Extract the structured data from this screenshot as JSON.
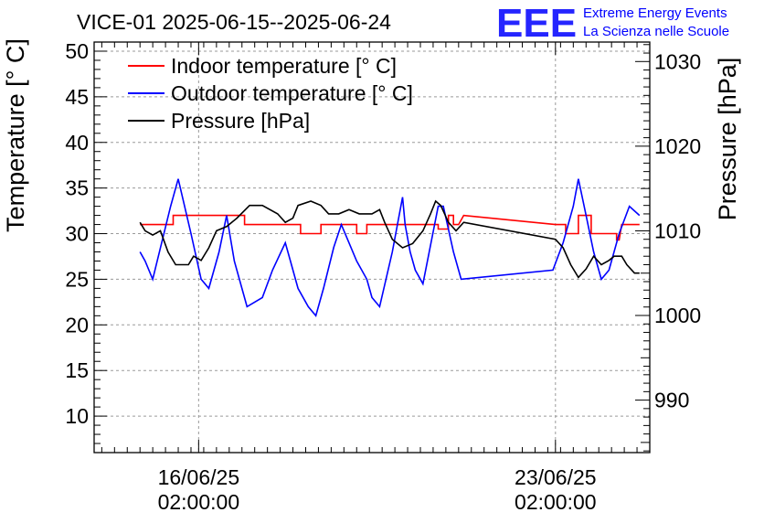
{
  "chart_data": {
    "type": "line",
    "title": "VICE-01 2025-06-15--2025-06-24",
    "ylabel": "Temperature [° C]",
    "y2label": "Pressure [hPa]",
    "ylim": [
      6,
      51
    ],
    "y2lim": [
      983.8,
      1032.3
    ],
    "yticks": [
      10,
      15,
      20,
      25,
      30,
      35,
      40,
      45,
      50
    ],
    "y2ticks": [
      990,
      1000,
      1010,
      1020,
      1030
    ],
    "xlim_days": [
      13.85,
      24.75
    ],
    "xticks": [
      {
        "day": 15.9,
        "line1": "16/06/25",
        "line2": "02:00:00"
      },
      {
        "day": 22.9,
        "line1": "23/06/25",
        "line2": "02:00:00"
      }
    ],
    "grid": true,
    "legend_position": "top-left",
    "series": [
      {
        "name": "Indoor temperature [° C]",
        "axis": "left",
        "color": "#ff0000",
        "points": [
          [
            14.75,
            31
          ],
          [
            15.4,
            31
          ],
          [
            15.4,
            32
          ],
          [
            16.8,
            32
          ],
          [
            16.8,
            31
          ],
          [
            17.9,
            31
          ],
          [
            17.9,
            30
          ],
          [
            18.3,
            30
          ],
          [
            18.3,
            31
          ],
          [
            19.0,
            31
          ],
          [
            19.0,
            30
          ],
          [
            19.2,
            30
          ],
          [
            19.2,
            31
          ],
          [
            20.6,
            31
          ],
          [
            20.6,
            30.5
          ],
          [
            20.8,
            30.5
          ],
          [
            20.8,
            32
          ],
          [
            20.9,
            32
          ],
          [
            20.9,
            31
          ],
          [
            21.0,
            31
          ],
          [
            21.1,
            32
          ],
          [
            22.9,
            31
          ],
          [
            23.1,
            31
          ],
          [
            23.1,
            30
          ],
          [
            23.35,
            30
          ],
          [
            23.35,
            32
          ],
          [
            23.6,
            32
          ],
          [
            23.6,
            30
          ],
          [
            24.1,
            30
          ],
          [
            24.1,
            29.3
          ],
          [
            24.15,
            29.3
          ],
          [
            24.2,
            31
          ],
          [
            24.55,
            31
          ]
        ]
      },
      {
        "name": "Outdoor temperature [° C]",
        "axis": "left",
        "color": "#0000ff",
        "points": [
          [
            14.75,
            28
          ],
          [
            14.85,
            27
          ],
          [
            15.0,
            25
          ],
          [
            15.35,
            33
          ],
          [
            15.5,
            36
          ],
          [
            15.75,
            30
          ],
          [
            15.95,
            25
          ],
          [
            16.1,
            24
          ],
          [
            16.3,
            28
          ],
          [
            16.45,
            32
          ],
          [
            16.6,
            27
          ],
          [
            16.85,
            22
          ],
          [
            17.0,
            22.5
          ],
          [
            17.15,
            23
          ],
          [
            17.35,
            26
          ],
          [
            17.6,
            29
          ],
          [
            17.7,
            27
          ],
          [
            17.85,
            24
          ],
          [
            18.05,
            22
          ],
          [
            18.2,
            21
          ],
          [
            18.35,
            24
          ],
          [
            18.55,
            28.5
          ],
          [
            18.7,
            31
          ],
          [
            19.0,
            27
          ],
          [
            19.2,
            25
          ],
          [
            19.3,
            23
          ],
          [
            19.45,
            22
          ],
          [
            19.7,
            28
          ],
          [
            19.9,
            34
          ],
          [
            19.95,
            31
          ],
          [
            20.05,
            28
          ],
          [
            20.15,
            26
          ],
          [
            20.3,
            24.5
          ],
          [
            20.6,
            33
          ],
          [
            20.7,
            33
          ],
          [
            20.9,
            28
          ],
          [
            21.05,
            25
          ],
          [
            22.85,
            26
          ],
          [
            23.05,
            29
          ],
          [
            23.25,
            33
          ],
          [
            23.35,
            36
          ],
          [
            23.5,
            32
          ],
          [
            23.65,
            28
          ],
          [
            23.8,
            25
          ],
          [
            23.95,
            26
          ],
          [
            24.15,
            30
          ],
          [
            24.35,
            33
          ],
          [
            24.55,
            32
          ]
        ]
      },
      {
        "name": "Pressure [hPa]",
        "axis": "right",
        "color": "#000000",
        "points": [
          [
            14.75,
            1011
          ],
          [
            14.85,
            1010
          ],
          [
            15.0,
            1009.5
          ],
          [
            15.15,
            1010
          ],
          [
            15.3,
            1007.5
          ],
          [
            15.45,
            1006
          ],
          [
            15.7,
            1006
          ],
          [
            15.8,
            1007
          ],
          [
            15.95,
            1006.5
          ],
          [
            16.1,
            1008
          ],
          [
            16.25,
            1010
          ],
          [
            16.45,
            1010.5
          ],
          [
            16.65,
            1011.5
          ],
          [
            16.9,
            1013
          ],
          [
            17.15,
            1013
          ],
          [
            17.45,
            1012
          ],
          [
            17.6,
            1011
          ],
          [
            17.75,
            1011.5
          ],
          [
            17.85,
            1013
          ],
          [
            18.1,
            1013.5
          ],
          [
            18.3,
            1013
          ],
          [
            18.45,
            1012
          ],
          [
            18.65,
            1012
          ],
          [
            18.85,
            1012.5
          ],
          [
            19.05,
            1012
          ],
          [
            19.3,
            1012
          ],
          [
            19.45,
            1012.5
          ],
          [
            19.55,
            1011
          ],
          [
            19.7,
            1009
          ],
          [
            19.9,
            1008
          ],
          [
            20.1,
            1008.5
          ],
          [
            20.3,
            1010
          ],
          [
            20.45,
            1012
          ],
          [
            20.55,
            1013.5
          ],
          [
            20.65,
            1013
          ],
          [
            20.8,
            1011
          ],
          [
            20.95,
            1010
          ],
          [
            21.1,
            1011
          ],
          [
            22.9,
            1009
          ],
          [
            23.05,
            1008
          ],
          [
            23.2,
            1006
          ],
          [
            23.35,
            1004.5
          ],
          [
            23.5,
            1005.5
          ],
          [
            23.65,
            1007
          ],
          [
            23.8,
            1006
          ],
          [
            23.95,
            1006.5
          ],
          [
            24.05,
            1007
          ],
          [
            24.2,
            1007
          ],
          [
            24.3,
            1006
          ],
          [
            24.45,
            1005
          ],
          [
            24.55,
            1005
          ]
        ]
      }
    ]
  },
  "logo": {
    "mark": "EEE",
    "line1": "Extreme Energy Events",
    "line2": "La Scienza nelle Scuole",
    "color": "#0000ff"
  }
}
